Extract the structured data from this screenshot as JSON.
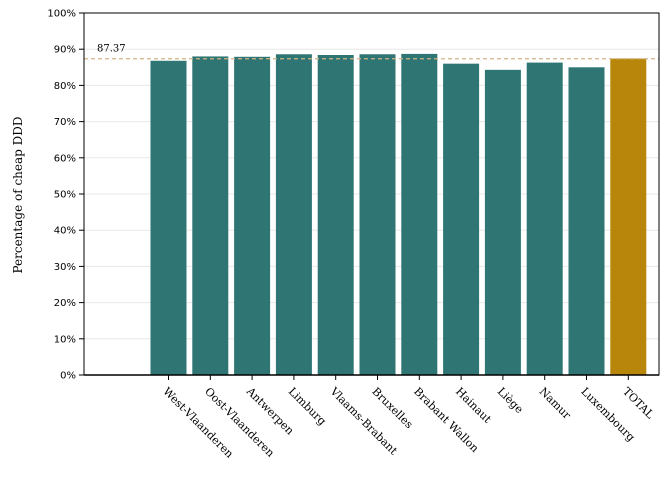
{
  "chart_data": {
    "type": "bar",
    "ylabel": "Percentage of cheap DDD",
    "xlabel": "",
    "categories": [
      "West-Vlaanderen",
      "Oost-Vlaanderen",
      "Antwerpen",
      "Limburg",
      "Vlaams-Brabant",
      "Bruxelles",
      "Brabant Wallon",
      "Hainaut",
      "Liège",
      "Namur",
      "Luxembourg",
      "TOTAL"
    ],
    "values": [
      86.8,
      88.0,
      87.9,
      88.6,
      88.4,
      88.6,
      88.7,
      86.0,
      84.3,
      86.3,
      85.0,
      87.4
    ],
    "ylim": [
      0,
      100
    ],
    "yticks": [
      "0%",
      "10%",
      "20%",
      "30%",
      "40%",
      "50%",
      "60%",
      "70%",
      "80%",
      "90%",
      "100%"
    ],
    "reference_line": {
      "value": 87.37,
      "label": "87.37"
    },
    "colors": {
      "bar": "#2e7574",
      "highlight": "#b8860b",
      "reference": "#d4b483",
      "grid": "#e8e8e8"
    },
    "highlight_category": "TOTAL",
    "grid": true
  }
}
